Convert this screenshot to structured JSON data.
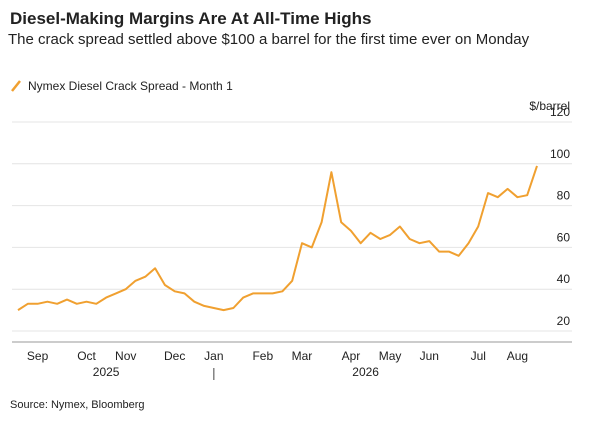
{
  "chart_data": {
    "type": "line",
    "title": "Diesel-Making Margins Are At All-Time Highs",
    "subtitle": "The crack spread settled above $100 a barrel for the first time ever on Monday",
    "y_label": "$/barrel",
    "source": "Source: Nymex, Bloomberg",
    "categories": [
      null,
      null,
      "Sep",
      null,
      null,
      null,
      null,
      "Oct",
      null,
      null,
      null,
      "Nov",
      null,
      null,
      null,
      null,
      "Dec",
      null,
      null,
      null,
      "Jan",
      null,
      null,
      null,
      null,
      "Feb",
      null,
      null,
      null,
      "Mar",
      null,
      null,
      null,
      null,
      "Apr",
      null,
      null,
      null,
      "May",
      null,
      null,
      null,
      "Jun",
      null,
      null,
      null,
      null,
      "Jul",
      null,
      null,
      null,
      "Aug",
      null,
      null
    ],
    "years": [
      "2025",
      "2026"
    ],
    "series": [
      {
        "name": "Nymex Diesel Crack Spread - Month 1",
        "color": "#f0a030",
        "values": [
          30,
          33,
          33,
          34,
          33,
          35,
          33,
          34,
          33,
          36,
          38,
          40,
          44,
          46,
          50,
          42,
          39,
          38,
          34,
          32,
          31,
          30,
          31,
          36,
          38,
          38,
          38,
          39,
          44,
          62,
          60,
          72,
          96,
          72,
          68,
          62,
          67,
          64,
          66,
          70,
          64,
          62,
          63,
          58,
          58,
          56,
          62,
          70,
          86,
          84,
          88,
          84,
          85,
          99
        ]
      }
    ],
    "ylim": [
      20,
      120
    ],
    "yticks": [
      20,
      40,
      60,
      80,
      100,
      120
    ],
    "grid": true
  }
}
